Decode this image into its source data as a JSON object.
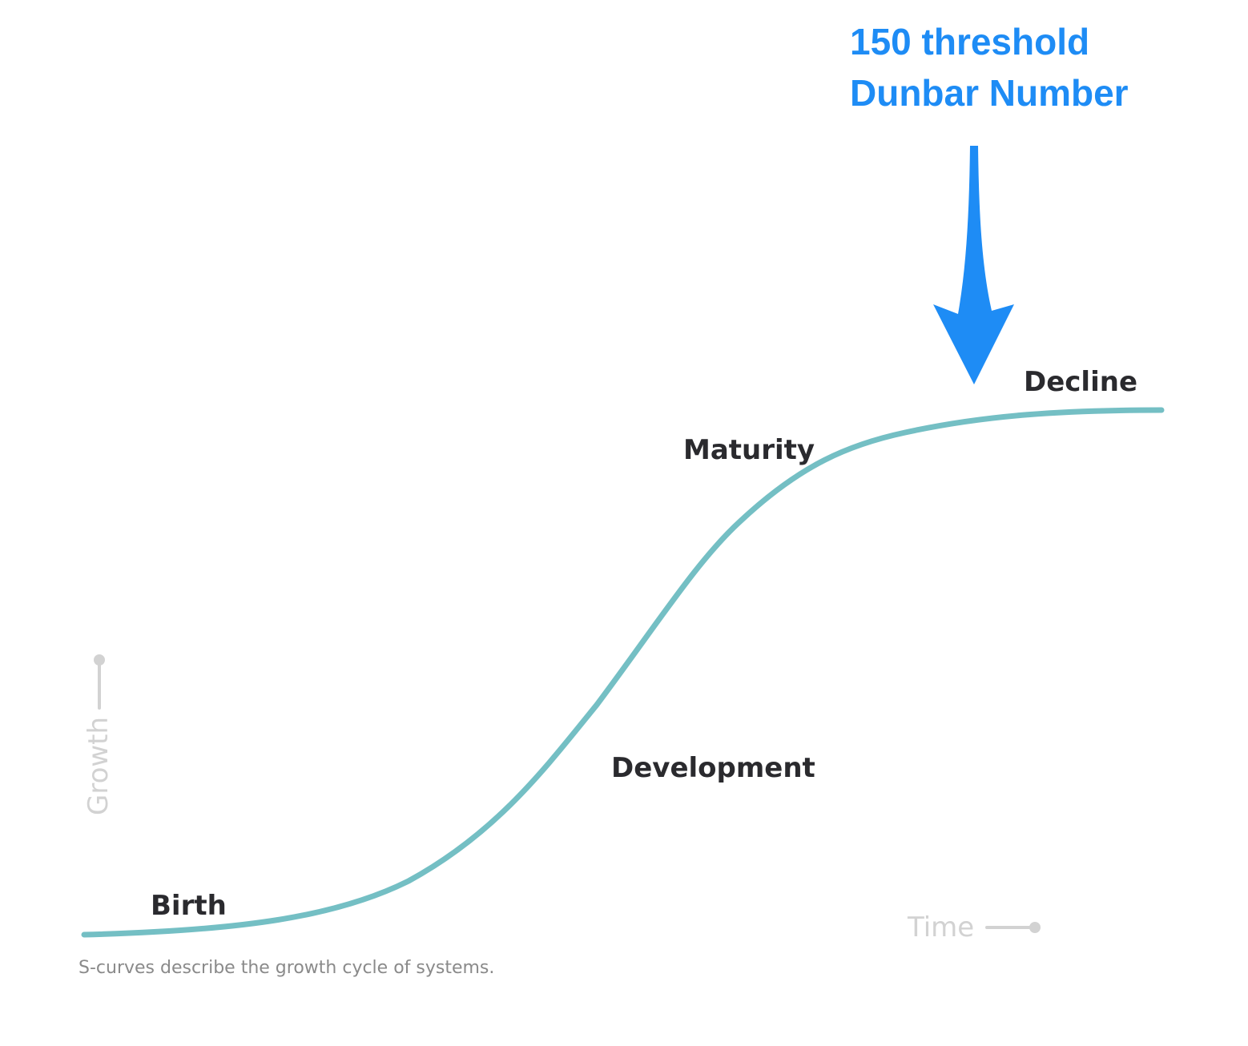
{
  "diagram": {
    "stages": [
      "Birth",
      "Development",
      "Maturity",
      "Decline"
    ],
    "axis": {
      "y_label": "Growth",
      "x_label": "Time",
      "color": "#d2d2d2"
    },
    "annotation": {
      "line1": "150 threshold",
      "line2": "Dunbar Number",
      "color": "#1e8cf5",
      "icon": "down-arrow-icon"
    },
    "caption": "S-curves describe the growth cycle of systems.",
    "curve_color": "#74bfc4"
  }
}
